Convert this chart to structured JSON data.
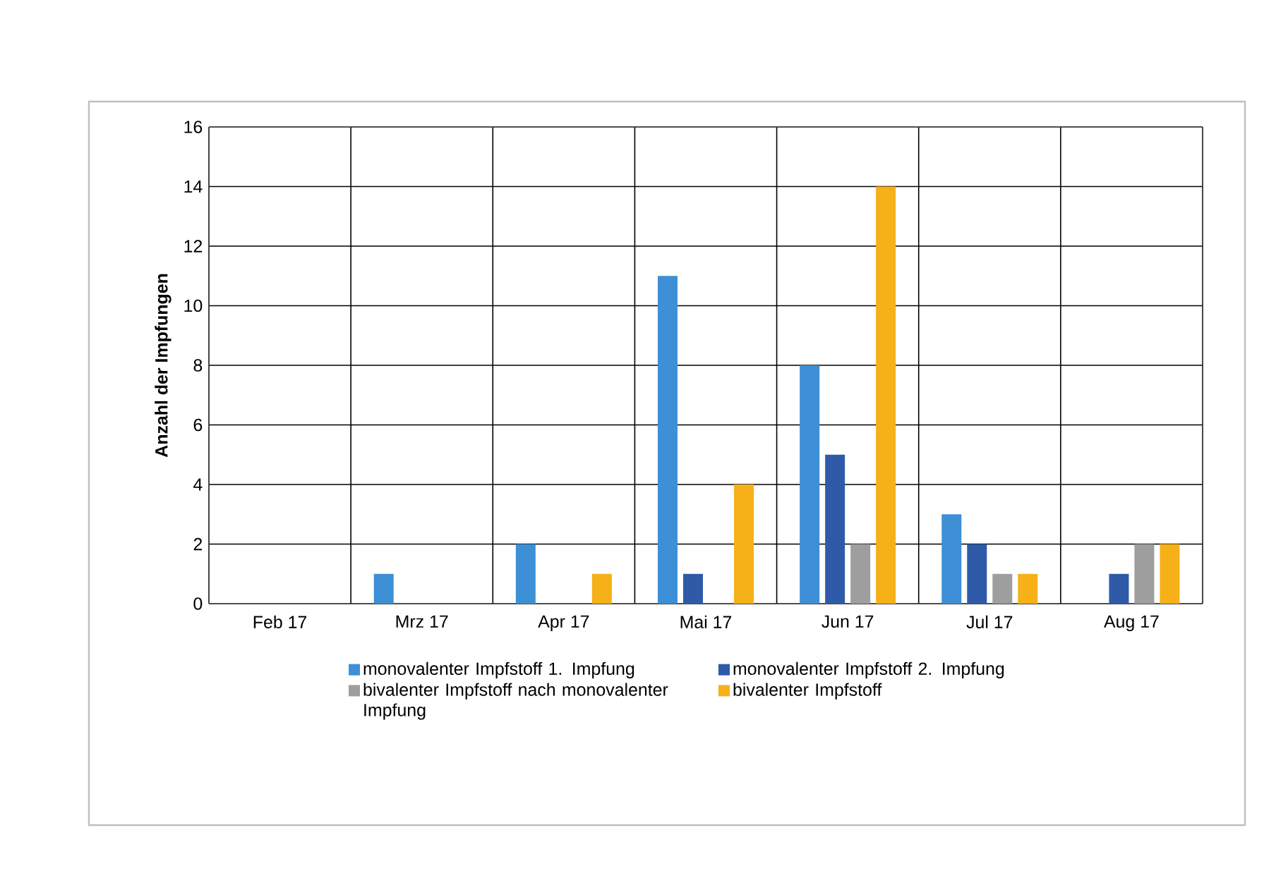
{
  "chart_data": {
    "type": "bar",
    "ylabel": "Anzahl der Impfungen",
    "categories": [
      "Feb 17",
      "Mrz 17",
      "Apr 17",
      "Mai 17",
      "Jun 17",
      "Jul 17",
      "Aug 17"
    ],
    "series": [
      {
        "name": "monovalenter Impfstoff 1. Impfung",
        "color": "#3d8fd6",
        "values": [
          0,
          1,
          2,
          11,
          8,
          3,
          0
        ]
      },
      {
        "name": "monovalenter Impfstoff 2. Impfung",
        "color": "#2e5aa8",
        "values": [
          0,
          0,
          0,
          1,
          5,
          2,
          1
        ]
      },
      {
        "name": "bivalenter Impfstoff nach monovalenter Impfung",
        "color": "#9e9e9e",
        "values": [
          0,
          0,
          0,
          0,
          2,
          1,
          2
        ]
      },
      {
        "name": "bivalenter Impfstoff",
        "color": "#f5b117",
        "values": [
          0,
          0,
          1,
          4,
          14,
          1,
          2
        ]
      }
    ],
    "ylim": [
      0,
      16
    ],
    "yticks": [
      0,
      2,
      4,
      6,
      8,
      10,
      12,
      14,
      16
    ],
    "grid": true,
    "legend": "bottom"
  }
}
